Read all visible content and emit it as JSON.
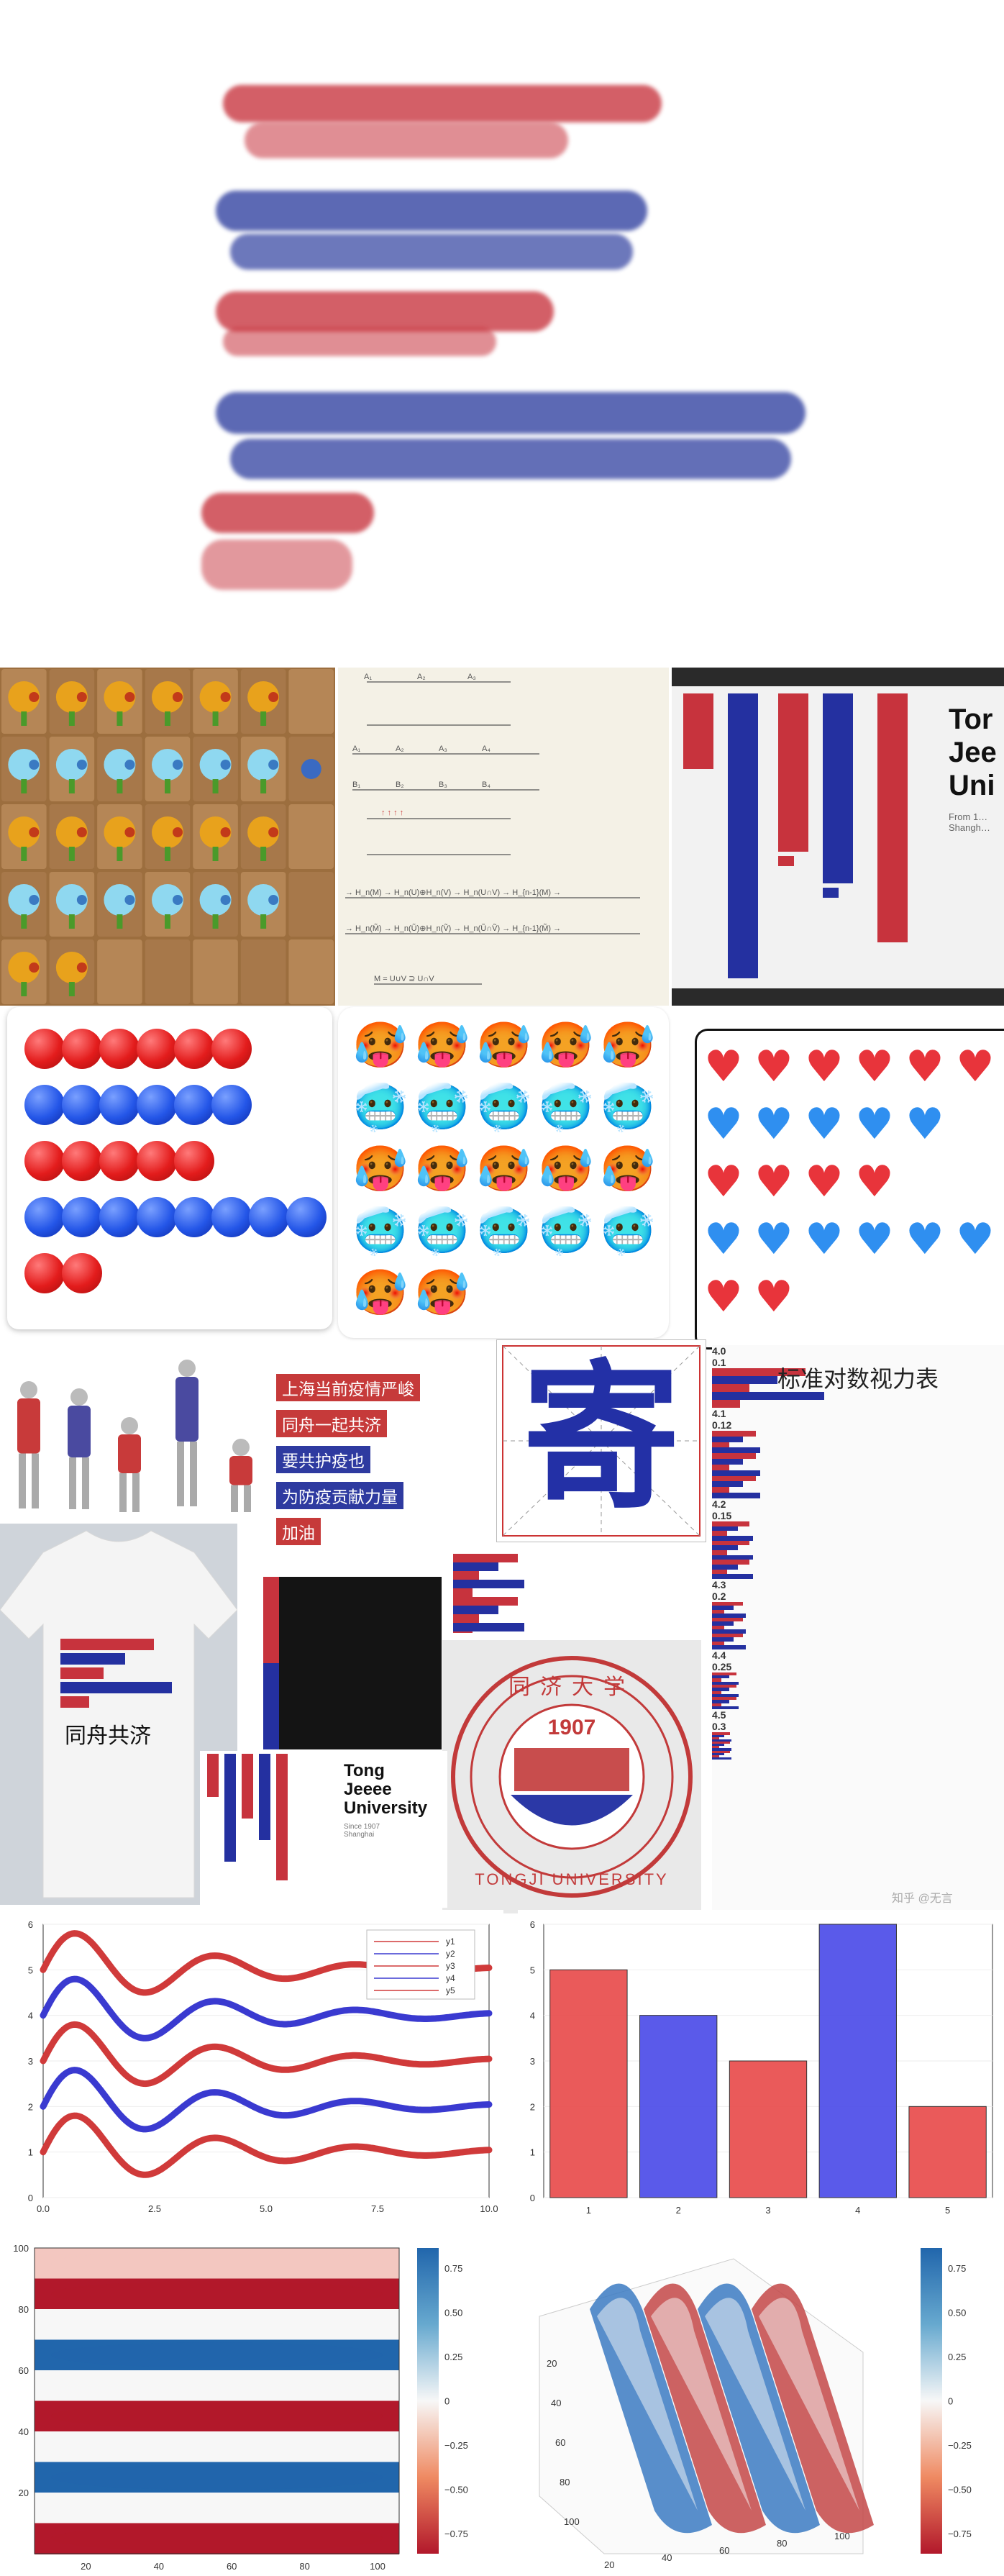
{
  "brand": {
    "red": "#c7333d",
    "blue": "#2430a0"
  },
  "tonji_card_1": {
    "title_line1": "Tor",
    "title_line2": "Jee",
    "title_line3": "Uni",
    "sub": "From 1…\nShangh…"
  },
  "slogan": {
    "line1": "上海当前疫情严峻",
    "line2": "同舟一起共济",
    "line3": "要共护疫也",
    "line4": "为防疫贡献力量",
    "line5": "加油"
  },
  "big_char": "寄",
  "eye_chart": {
    "title": "标准对数视力表",
    "rows": [
      {
        "left": "4.0",
        "right": "0.1"
      },
      {
        "left": "4.1",
        "right": "0.12"
      },
      {
        "left": "4.2",
        "right": "0.15"
      },
      {
        "left": "4.3",
        "right": "0.2"
      },
      {
        "left": "4.4",
        "right": "0.25"
      },
      {
        "left": "4.5",
        "right": "0.3"
      }
    ]
  },
  "tshirt": {
    "text": "同舟共济"
  },
  "tonji_card_2": {
    "title_line1": "Tong",
    "title_line2": "Jeeee",
    "title_line3": "University",
    "sub": "Since 1907\nShanghai"
  },
  "seal": {
    "top": "同济大学",
    "year": "1907",
    "bottom": "TONGJI UNIVERSITY"
  },
  "watermark": "知乎 @无言",
  "line_chart": {
    "chart_data": {
      "type": "line",
      "x_range": [
        0,
        10
      ],
      "ylim": [
        0,
        6
      ],
      "xticks": [
        "0.0",
        "2.5",
        "5.0",
        "7.5",
        "10.0"
      ],
      "yticks": [
        "0",
        "1",
        "2",
        "3",
        "4",
        "5",
        "6"
      ],
      "legend_position": "top-right",
      "series": [
        {
          "name": "y1",
          "offset": 1,
          "color": "#d03a3a"
        },
        {
          "name": "y2",
          "offset": 2,
          "color": "#3a3ad0"
        },
        {
          "name": "y3",
          "offset": 3,
          "color": "#d03a3a"
        },
        {
          "name": "y4",
          "offset": 4,
          "color": "#3a3ad0"
        },
        {
          "name": "y5",
          "offset": 5,
          "color": "#d03a3a"
        }
      ]
    }
  },
  "bar_chart": {
    "chart_data": {
      "type": "bar",
      "categories": [
        "1",
        "2",
        "3",
        "4",
        "5"
      ],
      "values": [
        5,
        4,
        3,
        6,
        2
      ],
      "colors": [
        "#e84848",
        "#4848e8",
        "#e84848",
        "#4848e8",
        "#e84848"
      ],
      "ylim": [
        0,
        6
      ],
      "yticks": [
        "0",
        "1",
        "2",
        "3",
        "4",
        "5",
        "6"
      ]
    }
  },
  "heatmap": {
    "chart_data": {
      "type": "heatmap",
      "xticks": [
        "20",
        "40",
        "60",
        "80",
        "100"
      ],
      "yticks": [
        "20",
        "40",
        "60",
        "80",
        "100"
      ],
      "colorbar_ticks": [
        "0.75",
        "0.50",
        "0.25",
        "0",
        "−0.25",
        "−0.50",
        "−0.75"
      ]
    }
  },
  "surface": {
    "chart_data": {
      "type": "area",
      "axis_ticks_left": [
        "20",
        "40",
        "60",
        "80",
        "100"
      ],
      "axis_ticks_bottom": [
        "20",
        "40",
        "60",
        "80",
        "100"
      ],
      "colorbar_ticks": [
        "0.75",
        "0.50",
        "0.25",
        "0",
        "−0.25",
        "−0.50",
        "−0.75"
      ]
    }
  }
}
